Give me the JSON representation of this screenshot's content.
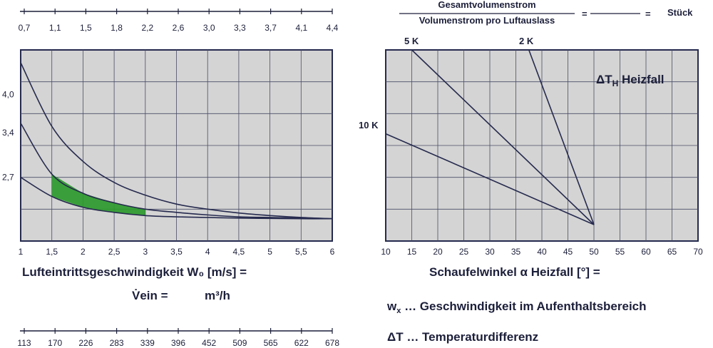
{
  "top_scale": {
    "labels": [
      "0,7",
      "1,1",
      "1,5",
      "1,8",
      "2,2",
      "2,6",
      "3,0",
      "3,3",
      "3,7",
      "4,1",
      "4,4"
    ]
  },
  "formula": {
    "numerator": "Gesamtvolumenstrom",
    "denominator": "Volumenstrom pro Luftauslass",
    "equals1": "=",
    "equals2": "=",
    "unit": "Stück"
  },
  "bottom_scale": {
    "labels": [
      "113",
      "170",
      "226",
      "283",
      "339",
      "396",
      "452",
      "509",
      "565",
      "622",
      "678"
    ]
  },
  "left_labels": {
    "xlabel": "Lufteintrittsgeschwindigkeit W₀ [m/s] =",
    "vein_label": "V̇ein =",
    "vein_unit": "m³/h"
  },
  "right_labels": {
    "xlabel": "Schaufelwinkel α Heizfall [°] =",
    "title": "ΔT",
    "title_sub": "H",
    "title_rest": " Heizfall",
    "line5k": "5 K",
    "line2k": "2 K",
    "line10k": "10 K"
  },
  "legend": {
    "wx_symbol": "w",
    "wx_sub": "x",
    "wx_text": " … Geschwindigkeit im Aufenthaltsbereich",
    "dt_text": "ΔT … Temperaturdifferenz"
  },
  "colors": {
    "plot_bg": "#d4d4d4",
    "grid": "#4a4d66",
    "curve": "#262a4e",
    "highlight": "#2d9a2d"
  },
  "chart_data": [
    {
      "type": "line",
      "xlabel": "Lufteintrittsgeschwindigkeit W₀ [m/s] =",
      "x_ticks": [
        "1",
        "1,5",
        "2",
        "2,5",
        "3",
        "3,5",
        "4",
        "4,5",
        "5",
        "5,5",
        "6"
      ],
      "xlim": [
        1,
        6
      ],
      "y_ticks": [
        "2,7",
        "3,4",
        "4,0"
      ],
      "ylim": [
        1.7,
        4.7
      ],
      "series": [
        {
          "x": [
            1,
            1.5,
            2,
            2.5,
            3,
            3.5,
            4,
            4.5,
            5,
            5.5,
            6
          ],
          "y": [
            4.5,
            3.5,
            2.95,
            2.62,
            2.42,
            2.28,
            2.2,
            2.14,
            2.1,
            2.07,
            2.05
          ]
        },
        {
          "x": [
            1,
            1.5,
            2,
            2.5,
            3,
            3.5,
            4,
            4.5,
            5,
            5.5,
            6
          ],
          "y": [
            3.55,
            2.75,
            2.45,
            2.3,
            2.2,
            2.15,
            2.11,
            2.08,
            2.07,
            2.06,
            2.05
          ]
        },
        {
          "x": [
            1,
            1.5,
            2,
            2.5,
            3,
            3.5,
            4,
            4.5,
            5,
            5.5,
            6
          ],
          "y": [
            2.7,
            2.4,
            2.23,
            2.15,
            2.1,
            2.08,
            2.07,
            2.06,
            2.055,
            2.05,
            2.05
          ]
        }
      ],
      "highlight_region": {
        "x_range": [
          1.5,
          3.0
        ]
      }
    },
    {
      "type": "line",
      "xlabel": "Schaufelwinkel α Heizfall [°] =",
      "x_ticks": [
        "10",
        "15",
        "20",
        "25",
        "30",
        "35",
        "40",
        "45",
        "50",
        "55",
        "60",
        "65",
        "70"
      ],
      "xlim": [
        10,
        70
      ],
      "series": [
        {
          "name": "5 K",
          "x": [
            15,
            50
          ],
          "y": [
            10,
            0
          ]
        },
        {
          "name": "2 K",
          "x": [
            37.5,
            50
          ],
          "y": [
            10,
            0
          ]
        },
        {
          "name": "10 K",
          "x": [
            10,
            50
          ],
          "y": [
            5.2,
            0
          ]
        }
      ]
    }
  ]
}
